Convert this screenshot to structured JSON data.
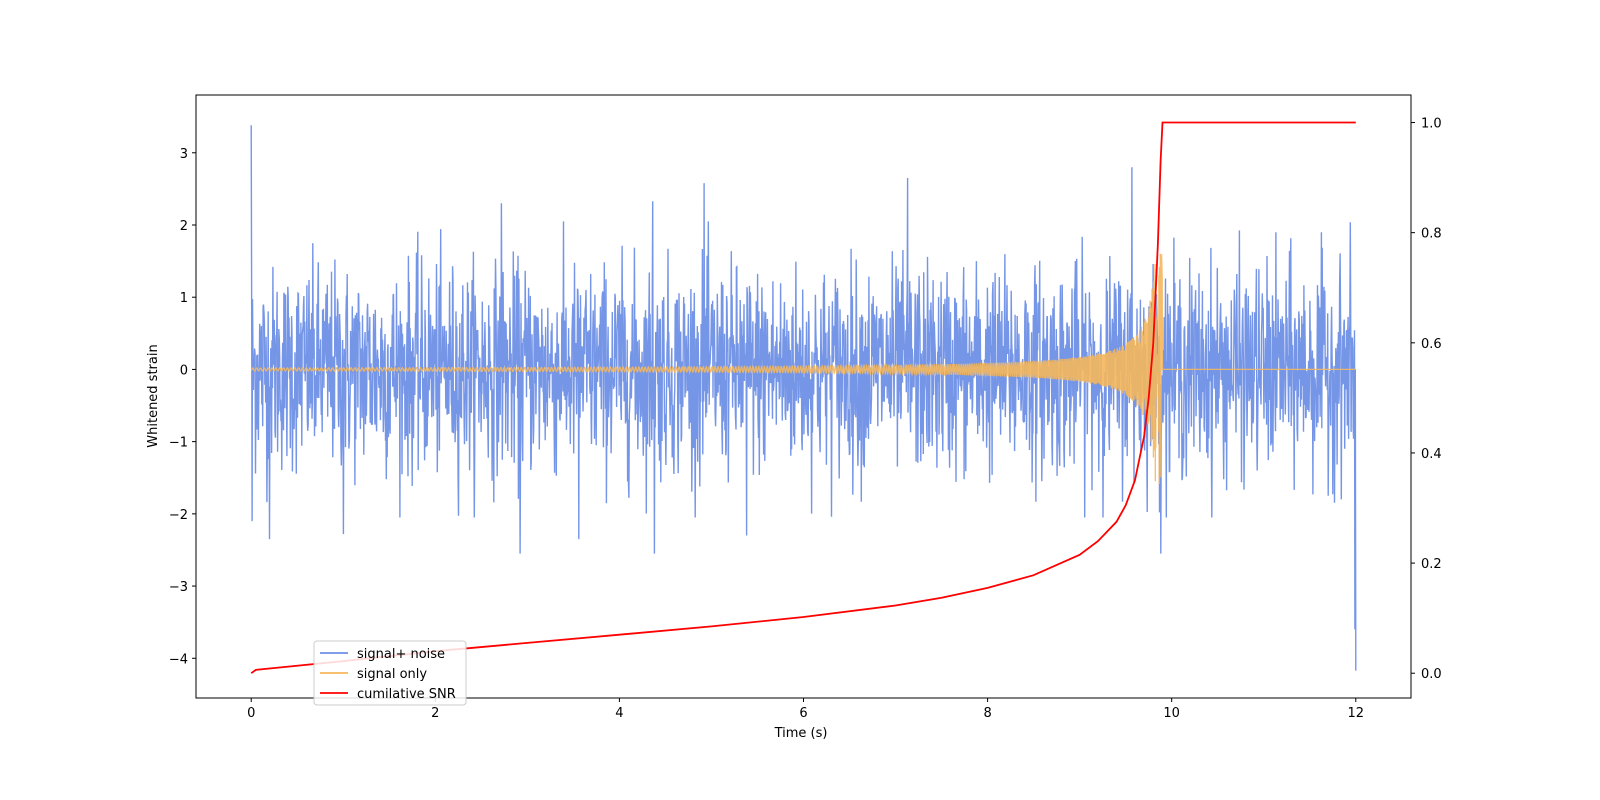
{
  "chart_data": {
    "type": "line",
    "xlabel": "Time (s)",
    "ylabel": "Whitened strain",
    "y2label": "",
    "xlim": [
      -0.6,
      12.6
    ],
    "ylim": [
      -4.55,
      3.8
    ],
    "y2lim": [
      -0.045,
      1.05
    ],
    "xticks": [
      0,
      2,
      4,
      6,
      8,
      10,
      12
    ],
    "yticks": [
      -4,
      -3,
      -2,
      -1,
      0,
      1,
      2,
      3
    ],
    "y2ticks": [
      0.0,
      0.2,
      0.4,
      0.6,
      0.8,
      1.0
    ],
    "grid": false,
    "legend_position": "lower-left",
    "series": [
      {
        "name": "signal+ noise",
        "color": "#6e8fe6",
        "axis": "left",
        "description_values": {
          "t_start": 0,
          "t_end": 12,
          "noise_std": 0.7,
          "spikes": [
            {
              "t": 0.0,
              "v": 3.38
            },
            {
              "t": 0.01,
              "v": -2.1
            },
            {
              "t": 0.2,
              "v": -2.35
            },
            {
              "t": 1.0,
              "v": -2.28
            },
            {
              "t": 2.72,
              "v": 2.3
            },
            {
              "t": 2.92,
              "v": -2.55
            },
            {
              "t": 3.56,
              "v": -2.35
            },
            {
              "t": 4.36,
              "v": 2.33
            },
            {
              "t": 4.38,
              "v": -2.55
            },
            {
              "t": 4.92,
              "v": 2.58
            },
            {
              "t": 5.38,
              "v": -2.3
            },
            {
              "t": 7.13,
              "v": 2.65
            },
            {
              "t": 9.57,
              "v": 2.8
            },
            {
              "t": 9.88,
              "v": -2.55
            },
            {
              "t": 12.0,
              "v": -4.17
            },
            {
              "t": 11.99,
              "v": -3.6
            }
          ]
        }
      },
      {
        "name": "signal only",
        "color": "#f5b75c",
        "axis": "left",
        "description_values": {
          "t_start": 0,
          "t_end": 12,
          "merger_time": 9.9,
          "amplitude_far": 0.02,
          "amplitude_peak": 1.6
        }
      },
      {
        "name": "cumilative SNR",
        "color": "#ff0000",
        "axis": "right",
        "x": [
          0,
          0.05,
          1,
          2,
          3,
          4,
          5,
          6,
          7,
          7.5,
          8,
          8.5,
          9,
          9.2,
          9.4,
          9.5,
          9.6,
          9.7,
          9.75,
          9.8,
          9.85,
          9.88,
          9.9,
          10,
          11,
          12
        ],
        "y": [
          0.0,
          0.006,
          0.022,
          0.04,
          0.055,
          0.07,
          0.085,
          0.102,
          0.123,
          0.137,
          0.155,
          0.178,
          0.215,
          0.24,
          0.275,
          0.305,
          0.35,
          0.43,
          0.5,
          0.6,
          0.78,
          0.93,
          1.0,
          1.0,
          1.0,
          1.0
        ]
      }
    ]
  }
}
